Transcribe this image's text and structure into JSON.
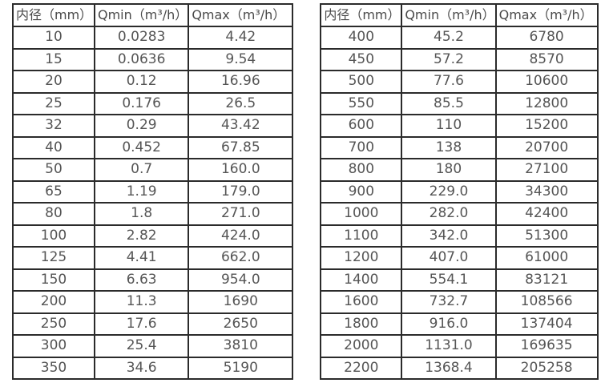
{
  "page": {
    "description_colors": {
      "background": "#ffffff",
      "border_color": "#2b2b2b",
      "text_color": "#4f4f4f"
    }
  },
  "chart_data": [
    {
      "type": "table",
      "title": "",
      "headers": [
        "内径（mm）",
        "Qmin（m³/h）",
        "Qmax（m³/h）"
      ],
      "rows": [
        [
          "10",
          "0.0283",
          "4.42"
        ],
        [
          "15",
          "0.0636",
          "9.54"
        ],
        [
          "20",
          "0.12",
          "16.96"
        ],
        [
          "25",
          "0.176",
          "26.5"
        ],
        [
          "32",
          "0.29",
          "43.42"
        ],
        [
          "40",
          "0.452",
          "67.85"
        ],
        [
          "50",
          "0.7",
          "160.0"
        ],
        [
          "65",
          "1.19",
          "179.0"
        ],
        [
          "80",
          "1.8",
          "271.0"
        ],
        [
          "100",
          "2.82",
          "424.0"
        ],
        [
          "125",
          "4.41",
          "662.0"
        ],
        [
          "150",
          "6.63",
          "954.0"
        ],
        [
          "200",
          "11.3",
          "1690"
        ],
        [
          "250",
          "17.6",
          "2650"
        ],
        [
          "300",
          "25.4",
          "3810"
        ],
        [
          "350",
          "34.6",
          "5190"
        ]
      ]
    },
    {
      "type": "table",
      "title": "",
      "headers": [
        "内径（mm）",
        "Qmin（m³/h）",
        "Qmax（m³/h）"
      ],
      "rows": [
        [
          "400",
          "45.2",
          "6780"
        ],
        [
          "450",
          "57.2",
          "8570"
        ],
        [
          "500",
          "77.6",
          "10600"
        ],
        [
          "550",
          "85.5",
          "12800"
        ],
        [
          "600",
          "110",
          "15200"
        ],
        [
          "700",
          "138",
          "20700"
        ],
        [
          "800",
          "180",
          "27100"
        ],
        [
          "900",
          "229.0",
          "34300"
        ],
        [
          "1000",
          "282.0",
          "42400"
        ],
        [
          "1100",
          "342.0",
          "51300"
        ],
        [
          "1200",
          "407.0",
          "61000"
        ],
        [
          "1400",
          "554.1",
          "83121"
        ],
        [
          "1600",
          "732.7",
          "108566"
        ],
        [
          "1800",
          "916.0",
          "137404"
        ],
        [
          "2000",
          "1131.0",
          "169635"
        ],
        [
          "2200",
          "1368.4",
          "205258"
        ]
      ]
    }
  ]
}
